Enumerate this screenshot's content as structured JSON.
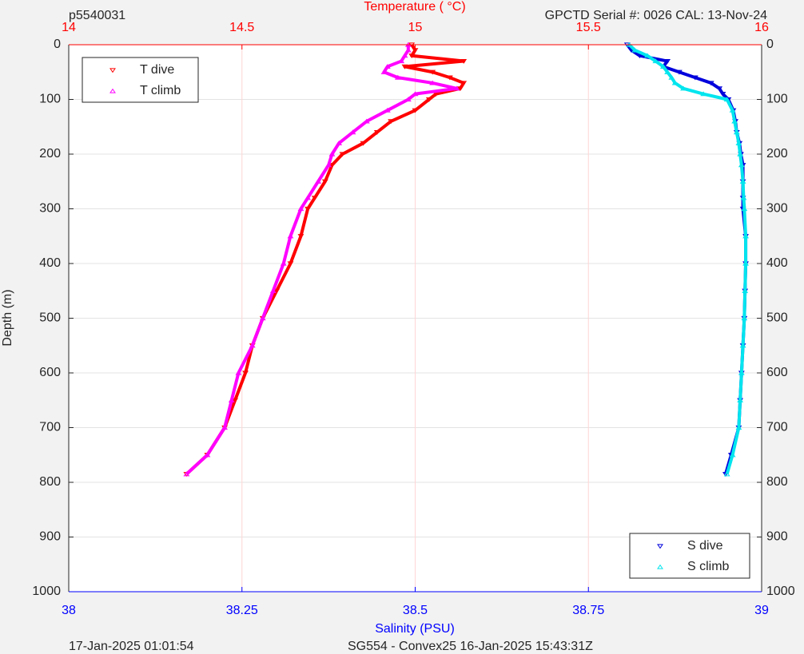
{
  "chart_data": {
    "type": "line",
    "top_left": "p5540031",
    "top_right": "GPCTD Serial #: 0026 CAL: 13-Nov-24",
    "x2_label": "Temperature (   °C)",
    "x_label": "Salinity (PSU)",
    "y_label": "Depth (m)",
    "footer_left": "17-Jan-2025 01:01:54",
    "footer_right": "SG554 - Convex25 16-Jan-2025 15:43:31Z",
    "y": [
      0,
      10,
      20,
      30,
      40,
      50,
      60,
      70,
      80,
      90,
      100,
      120,
      140,
      160,
      180,
      200,
      220,
      250,
      280,
      300,
      350,
      400,
      450,
      500,
      550,
      600,
      650,
      700,
      750,
      785
    ],
    "ylim": [
      0,
      1000
    ],
    "yticks": [
      0,
      100,
      200,
      300,
      400,
      500,
      600,
      700,
      800,
      900,
      1000
    ],
    "y_reversed": true,
    "xlim": [
      38,
      39
    ],
    "xticks": [
      38,
      38.25,
      38.5,
      38.75,
      39
    ],
    "x_color": "#0000ff",
    "x2lim": [
      14,
      16
    ],
    "x2ticks": [
      14,
      14.5,
      15,
      15.5,
      16
    ],
    "x2_color": "#ff0000",
    "grid": true,
    "series": [
      {
        "name": "T dive",
        "color": "#ff0000",
        "axis": "x2",
        "marker": "down",
        "values": [
          14.99,
          15.0,
          14.99,
          15.14,
          14.97,
          15.05,
          15.1,
          15.14,
          15.13,
          15.06,
          15.04,
          15.0,
          14.93,
          14.89,
          14.85,
          14.79,
          14.76,
          14.74,
          14.71,
          14.69,
          14.67,
          14.64,
          14.6,
          14.56,
          14.53,
          14.51,
          14.48,
          14.45,
          14.4,
          14.34
        ]
      },
      {
        "name": "T climb",
        "color": "#ff00ff",
        "axis": "x2",
        "marker": "up",
        "values": [
          14.98,
          14.98,
          14.97,
          14.96,
          14.92,
          14.91,
          14.95,
          15.05,
          15.12,
          15.0,
          14.98,
          14.92,
          14.86,
          14.82,
          14.78,
          14.76,
          14.75,
          14.72,
          14.69,
          14.67,
          14.64,
          14.62,
          14.59,
          14.56,
          14.53,
          14.49,
          14.47,
          14.45,
          14.4,
          14.34
        ]
      },
      {
        "name": "S dive",
        "color": "#0000dd",
        "axis": "x",
        "marker": "down",
        "values": [
          38.806,
          38.812,
          38.824,
          38.864,
          38.858,
          38.881,
          38.904,
          38.927,
          38.939,
          38.944,
          38.952,
          38.959,
          38.962,
          38.964,
          38.968,
          38.97,
          38.973,
          38.973,
          38.973,
          38.973,
          38.977,
          38.977,
          38.976,
          38.975,
          38.973,
          38.971,
          38.969,
          38.967,
          38.956,
          38.948
        ]
      },
      {
        "name": "S climb",
        "color": "#00e5ee",
        "axis": "x",
        "marker": "up",
        "values": [
          38.809,
          38.817,
          38.835,
          38.847,
          38.858,
          38.864,
          38.87,
          38.875,
          38.887,
          38.916,
          38.95,
          38.958,
          38.961,
          38.964,
          38.967,
          38.969,
          38.971,
          38.973,
          38.974,
          38.975,
          38.977,
          38.977,
          38.976,
          38.975,
          38.973,
          38.971,
          38.969,
          38.967,
          38.958,
          38.95
        ]
      }
    ],
    "legends": [
      {
        "corner": "upper-left",
        "series": [
          0,
          1
        ]
      },
      {
        "corner": "lower-right",
        "series": [
          2,
          3
        ]
      }
    ]
  }
}
